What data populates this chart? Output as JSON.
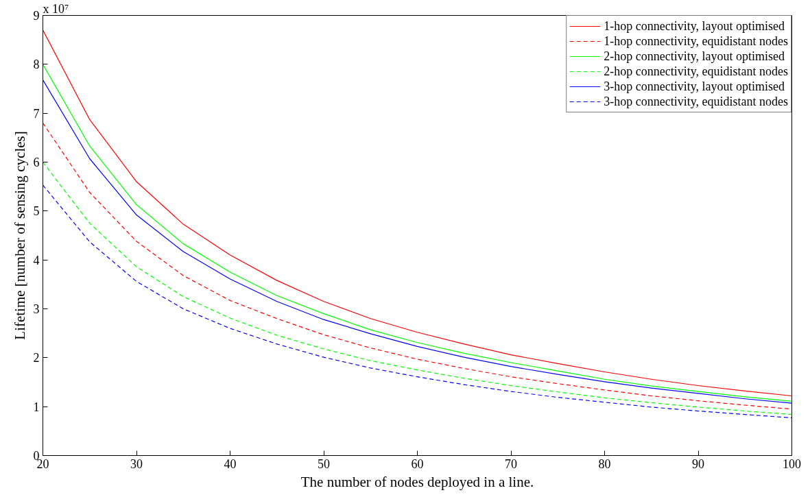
{
  "chart_data": {
    "type": "line",
    "xlabel": "The number of nodes deployed in a line.",
    "ylabel": "Lifetime [number of sensing cycles]",
    "annotations": [
      "x 10⁷"
    ],
    "x": [
      20,
      25,
      30,
      35,
      40,
      45,
      50,
      55,
      60,
      65,
      70,
      75,
      80,
      85,
      90,
      95,
      100
    ],
    "series": [
      {
        "name": "1-hop connectivity, layout optimised",
        "color": "#ff0000",
        "line_style": "solid",
        "values": [
          8.7,
          6.87,
          5.6,
          4.73,
          4.1,
          3.58,
          3.15,
          2.8,
          2.52,
          2.28,
          2.06,
          1.88,
          1.71,
          1.56,
          1.43,
          1.32,
          1.22
        ]
      },
      {
        "name": "1-hop connectivity, equidistant nodes",
        "color": "#ff0000",
        "line_style": "dashed",
        "values": [
          6.8,
          5.38,
          4.38,
          3.68,
          3.17,
          2.8,
          2.47,
          2.2,
          1.97,
          1.78,
          1.61,
          1.47,
          1.34,
          1.22,
          1.12,
          1.03,
          0.95
        ]
      },
      {
        "name": "2-hop connectivity, layout optimised",
        "color": "#00ff00",
        "line_style": "solid",
        "values": [
          8.0,
          6.33,
          5.13,
          4.33,
          3.75,
          3.27,
          2.9,
          2.57,
          2.31,
          2.09,
          1.9,
          1.73,
          1.56,
          1.42,
          1.31,
          1.2,
          1.11
        ]
      },
      {
        "name": "2-hop connectivity, equidistant nodes",
        "color": "#00ff00",
        "line_style": "dashed",
        "values": [
          6.0,
          4.75,
          3.86,
          3.25,
          2.81,
          2.46,
          2.18,
          1.94,
          1.75,
          1.58,
          1.43,
          1.3,
          1.18,
          1.08,
          0.99,
          0.91,
          0.84
        ]
      },
      {
        "name": "3-hop connectivity, layout optimised",
        "color": "#0000ff",
        "line_style": "solid",
        "values": [
          7.68,
          6.07,
          4.92,
          4.17,
          3.61,
          3.15,
          2.78,
          2.49,
          2.23,
          2.01,
          1.82,
          1.66,
          1.51,
          1.38,
          1.27,
          1.16,
          1.07
        ]
      },
      {
        "name": "3-hop connectivity, equidistant nodes",
        "color": "#0000ff",
        "line_style": "dashed",
        "values": [
          5.53,
          4.37,
          3.56,
          3.0,
          2.6,
          2.28,
          2.01,
          1.79,
          1.61,
          1.45,
          1.31,
          1.19,
          1.09,
          0.99,
          0.91,
          0.84,
          0.77
        ]
      }
    ],
    "xlim": [
      20,
      100
    ],
    "xticks": [
      20,
      30,
      40,
      50,
      60,
      70,
      80,
      90,
      100
    ],
    "ylim": [
      0,
      9
    ],
    "yticks": [
      0,
      1,
      2,
      3,
      4,
      5,
      6,
      7,
      8,
      9
    ],
    "grid": false,
    "legend": "top right",
    "marker": "none"
  }
}
